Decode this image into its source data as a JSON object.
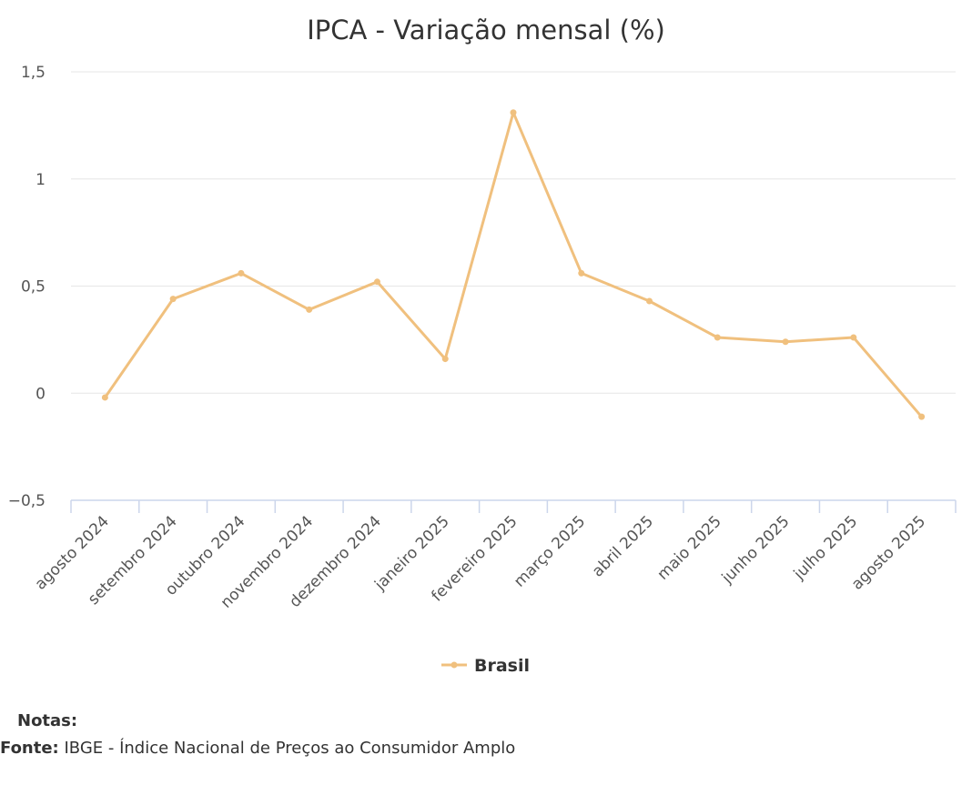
{
  "chart_data": {
    "type": "line",
    "title": "IPCA - Variação mensal (%)",
    "xlabel": "",
    "ylabel": "",
    "categories": [
      "agosto 2024",
      "setembro 2024",
      "outubro 2024",
      "novembro 2024",
      "dezembro 2024",
      "janeiro 2025",
      "fevereiro 2025",
      "março 2025",
      "abril 2025",
      "maio 2025",
      "junho 2025",
      "julho 2025",
      "agosto 2025"
    ],
    "series": [
      {
        "name": "Brasil",
        "values": [
          -0.02,
          0.44,
          0.56,
          0.39,
          0.52,
          0.16,
          1.31,
          0.56,
          0.43,
          0.26,
          0.24,
          0.26,
          -0.11
        ],
        "color": "#f0c07e"
      }
    ],
    "ylim": [
      -0.5,
      1.5
    ],
    "yticks": [
      -0.5,
      0,
      0.5,
      1,
      1.5
    ],
    "ytick_labels": [
      "−0,5",
      "0",
      "0,5",
      "1",
      "1,5"
    ],
    "grid": true,
    "legend": "bottom-center",
    "colors": {
      "line": "#f0c07e",
      "grid": "#e6e6e6",
      "axis": "#ccd6eb"
    }
  },
  "notes": {
    "notes_label": "Notas:",
    "source_label": "Fonte:",
    "source_text": " IBGE - Índice Nacional de Preços ao Consumidor Amplo"
  }
}
